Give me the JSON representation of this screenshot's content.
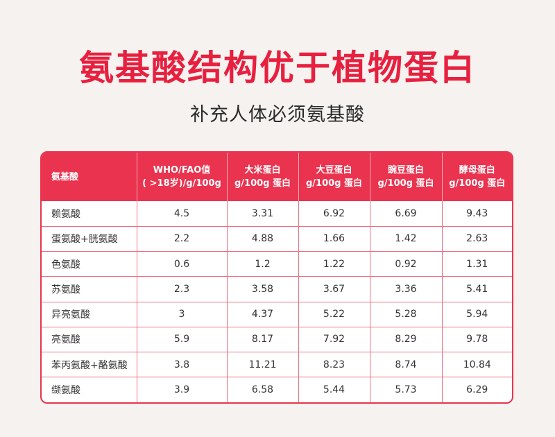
{
  "title": "氨基酸结构优于植物蛋白",
  "subtitle": "补充人体必须氨基酸",
  "chart_data": {
    "type": "table",
    "columns": [
      "氨基酸",
      "WHO/FAO值\n( >18岁)/g/100g",
      "大米蛋白\ng/100g 蛋白",
      "大豆蛋白\ng/100g 蛋白",
      "豌豆蛋白\ng/100g 蛋白",
      "酵母蛋白\ng/100g 蛋白"
    ],
    "rows": [
      [
        "赖氨酸",
        "4.5",
        "3.31",
        "6.92",
        "6.69",
        "9.43"
      ],
      [
        "蛋氨酸+胱氨酸",
        "2.2",
        "4.88",
        "1.66",
        "1.42",
        "2.63"
      ],
      [
        "色氨酸",
        "0.6",
        "1.2",
        "1.22",
        "0.92",
        "1.31"
      ],
      [
        "苏氨酸",
        "2.3",
        "3.58",
        "3.67",
        "3.36",
        "5.41"
      ],
      [
        "异亮氨酸",
        "3",
        "4.37",
        "5.22",
        "5.28",
        "5.94"
      ],
      [
        "亮氨酸",
        "5.9",
        "8.17",
        "7.92",
        "8.29",
        "9.78"
      ],
      [
        "苯丙氨酸+酪氨酸",
        "3.8",
        "11.21",
        "8.23",
        "8.74",
        "10.84"
      ],
      [
        "缬氨酸",
        "3.9",
        "6.58",
        "5.44",
        "5.73",
        "6.29"
      ]
    ]
  },
  "colors": {
    "accent": "#e9334f",
    "title": "#e8203f",
    "background": "#f6f2f0"
  }
}
